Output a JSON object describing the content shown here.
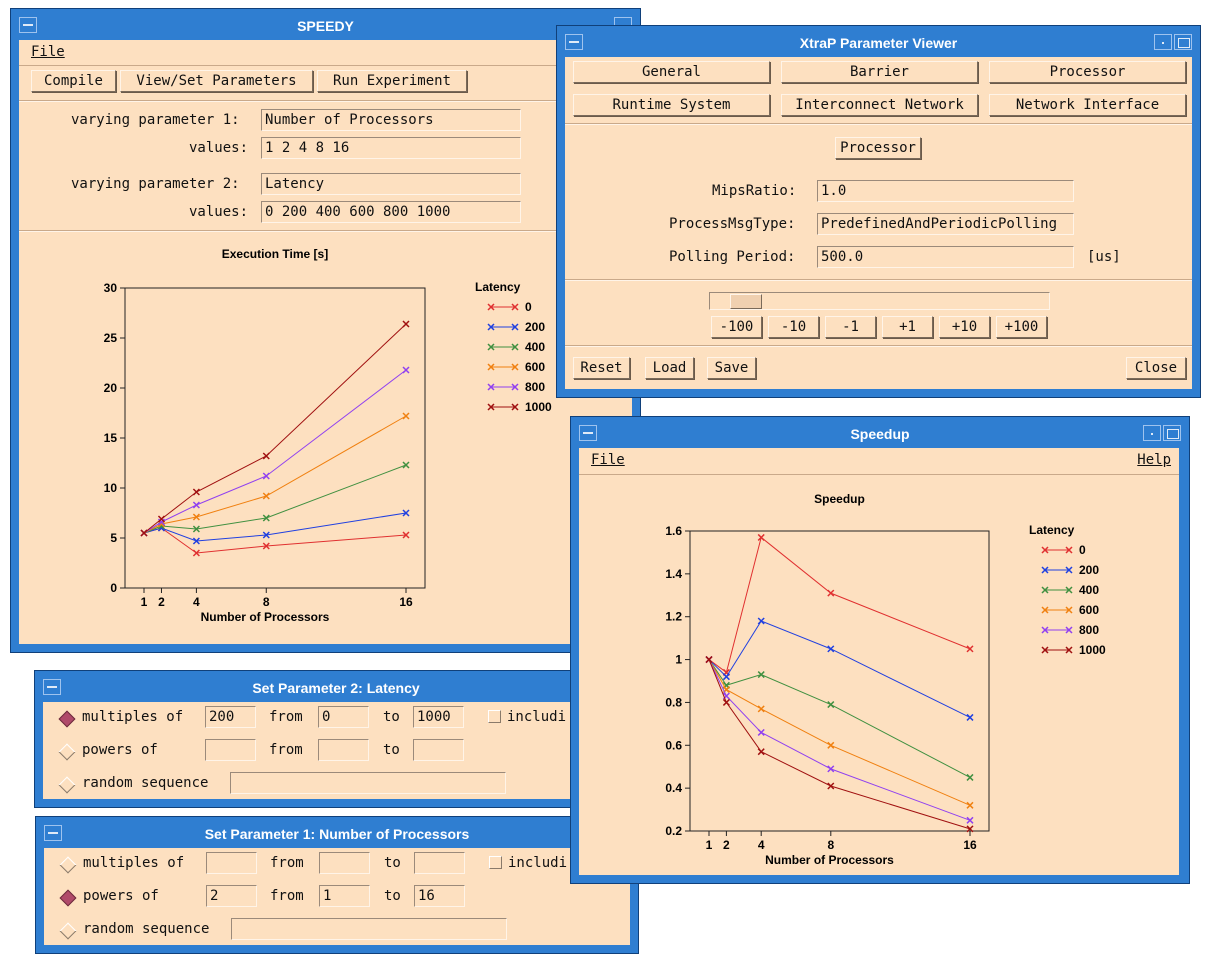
{
  "speedy": {
    "title": "SPEEDY",
    "menu_file": "File",
    "toolbar": {
      "compile": "Compile",
      "view_set": "View/Set Parameters",
      "run": "Run Experiment"
    },
    "param1_label": "varying parameter 1:",
    "param1_value": "Number of Processors",
    "values_label": "values:",
    "param1_values": "1 2 4 8 16",
    "param2_label": "varying parameter 2:",
    "param2_value": "Latency",
    "param2_values": "0 200 400 600 800 1000"
  },
  "xtrap": {
    "title": "XtraP Parameter Viewer",
    "tabs": [
      "General",
      "Barrier",
      "Processor",
      "Runtime System",
      "Interconnect Network",
      "Network Interface"
    ],
    "section": "Processor",
    "mips_label": "MipsRatio:",
    "mips_value": "1.0",
    "pmt_label": "ProcessMsgType:",
    "pmt_value": "PredefinedAndPeriodicPolling",
    "poll_label": "Polling Period:",
    "poll_value": "500.0",
    "poll_unit": "[us]",
    "slider_level": 0.06,
    "steps": [
      "-100",
      "-10",
      "-1",
      "+1",
      "+10",
      "+100"
    ],
    "reset": "Reset",
    "load": "Load",
    "save": "Save",
    "close": "Close"
  },
  "speedup_win": {
    "title": "Speedup",
    "menu_file": "File",
    "menu_help": "Help"
  },
  "setp2": {
    "title": "Set Parameter 2: Latency",
    "multiples": "multiples of",
    "powers": "powers of",
    "random": "random sequence",
    "from": "from",
    "to": "to",
    "including": "includi",
    "mult_val": "200",
    "mult_from": "0",
    "mult_to": "1000"
  },
  "setp1": {
    "title": "Set Parameter 1: Number of Processors",
    "multiples": "multiples of",
    "powers": "powers of",
    "random": "random sequence",
    "from": "from",
    "to": "to",
    "including": "includi",
    "pow_val": "2",
    "pow_from": "1",
    "pow_to": "16"
  },
  "colors": {
    "accent": "#2f7ed1",
    "panel": "#fde0c0"
  },
  "chart_data": [
    {
      "type": "line",
      "title": "Execution Time [s]",
      "xlabel": "Number of Processors",
      "ylabel": "",
      "legend_title": "Latency",
      "x": [
        1,
        2,
        4,
        8,
        16
      ],
      "xticks": [
        "1",
        "2",
        "4",
        "8",
        "16"
      ],
      "yticks": [
        "0",
        "5",
        "10",
        "15",
        "20",
        "25",
        "30"
      ],
      "ylim": [
        0,
        30
      ],
      "series": [
        {
          "name": "0",
          "color": "#e03030",
          "values": [
            5.5,
            6.0,
            3.5,
            4.2,
            5.3
          ]
        },
        {
          "name": "200",
          "color": "#2040e0",
          "values": [
            5.5,
            6.0,
            4.7,
            5.3,
            7.5
          ]
        },
        {
          "name": "400",
          "color": "#409040",
          "values": [
            5.5,
            6.2,
            5.9,
            7.0,
            12.3
          ]
        },
        {
          "name": "600",
          "color": "#f08010",
          "values": [
            5.5,
            6.4,
            7.1,
            9.2,
            17.2
          ]
        },
        {
          "name": "800",
          "color": "#9040f0",
          "values": [
            5.5,
            6.6,
            8.3,
            11.2,
            21.8
          ]
        },
        {
          "name": "1000",
          "color": "#a01010",
          "values": [
            5.5,
            6.9,
            9.6,
            13.2,
            26.4
          ]
        }
      ]
    },
    {
      "type": "line",
      "title": "Speedup",
      "xlabel": "Number of Processors",
      "ylabel": "",
      "legend_title": "Latency",
      "x": [
        1,
        2,
        4,
        8,
        16
      ],
      "xticks": [
        "1",
        "2",
        "4",
        "8",
        "16"
      ],
      "yticks": [
        "0.2",
        "0.4",
        "0.6",
        "0.8",
        "1",
        "1.2",
        "1.4",
        "1.6"
      ],
      "ylim": [
        0.2,
        1.6
      ],
      "series": [
        {
          "name": "0",
          "color": "#e03030",
          "values": [
            1.0,
            0.94,
            1.57,
            1.31,
            1.05
          ]
        },
        {
          "name": "200",
          "color": "#2040e0",
          "values": [
            1.0,
            0.92,
            1.18,
            1.05,
            0.73
          ]
        },
        {
          "name": "400",
          "color": "#409040",
          "values": [
            1.0,
            0.88,
            0.93,
            0.79,
            0.45
          ]
        },
        {
          "name": "600",
          "color": "#f08010",
          "values": [
            1.0,
            0.86,
            0.77,
            0.6,
            0.32
          ]
        },
        {
          "name": "800",
          "color": "#9040f0",
          "values": [
            1.0,
            0.83,
            0.66,
            0.49,
            0.25
          ]
        },
        {
          "name": "1000",
          "color": "#a01010",
          "values": [
            1.0,
            0.8,
            0.57,
            0.41,
            0.21
          ]
        }
      ]
    }
  ]
}
